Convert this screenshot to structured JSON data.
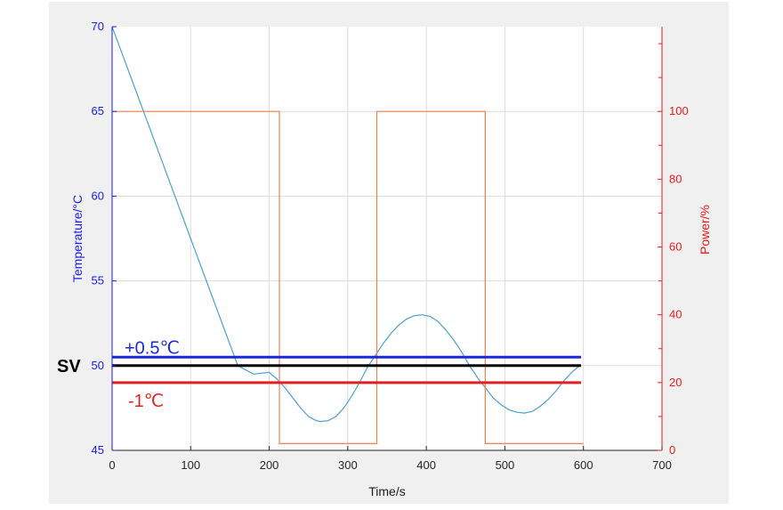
{
  "chart_data": {
    "type": "line",
    "xlabel": "Time/s",
    "ylabel_left": "Temperature/°C",
    "ylabel_right": "Power/%",
    "xlim": [
      0,
      700
    ],
    "ylim_left": [
      45,
      70
    ],
    "ylim_right": [
      0,
      125
    ],
    "x_ticks": [
      0,
      100,
      200,
      300,
      400,
      500,
      600,
      700
    ],
    "y_left_ticks": [
      45,
      50,
      55,
      60,
      65,
      70
    ],
    "y_right_ticks": [
      0,
      20,
      40,
      60,
      80,
      100
    ],
    "grid": true,
    "colors": {
      "temperature": "#4a9fd8",
      "power": "#f08050",
      "left_axis": "#1a1aee",
      "right_axis": "#ee1a1a",
      "upper_band": "#1a2ad8",
      "setpoint": "#000000",
      "lower_band": "#e02020"
    },
    "series": [
      {
        "axis": "left",
        "x": [
          0,
          20,
          40,
          60,
          80,
          100,
          120,
          140,
          160,
          180,
          200,
          210,
          220,
          230,
          240,
          250,
          260,
          265,
          275,
          285,
          295,
          305,
          315,
          325,
          335,
          345,
          355,
          365,
          375,
          385,
          395,
          405,
          415,
          425,
          435,
          445,
          455,
          465,
          475,
          485,
          495,
          505,
          515,
          525,
          535,
          545,
          555,
          565,
          575,
          585,
          595
        ],
        "y": [
          70,
          67.5,
          65,
          62.5,
          60,
          57.5,
          55,
          52.5,
          50,
          49.5,
          49.6,
          49.2,
          48.7,
          48.1,
          47.5,
          47.0,
          46.75,
          46.7,
          46.75,
          47.0,
          47.5,
          48.2,
          49.0,
          49.9,
          50.6,
          51.3,
          51.9,
          52.4,
          52.75,
          52.95,
          53.0,
          52.9,
          52.6,
          52.1,
          51.5,
          50.8,
          50.0,
          49.3,
          48.7,
          48.1,
          47.7,
          47.4,
          47.25,
          47.2,
          47.3,
          47.6,
          48.0,
          48.5,
          49.1,
          49.6,
          50.0
        ]
      },
      {
        "axis": "right",
        "x": [
          0,
          213,
          213,
          337,
          337,
          475,
          475,
          600
        ],
        "y": [
          100,
          100,
          2,
          2,
          100,
          100,
          2,
          2
        ]
      }
    ],
    "reference_lines": [
      {
        "label": "+0.5℃",
        "value": 50.5,
        "x_range": [
          0,
          597
        ]
      },
      {
        "label": "SV",
        "value": 50,
        "x_range": [
          0,
          597
        ]
      },
      {
        "label": "-1℃",
        "value": 49,
        "x_range": [
          0,
          597
        ]
      }
    ]
  }
}
